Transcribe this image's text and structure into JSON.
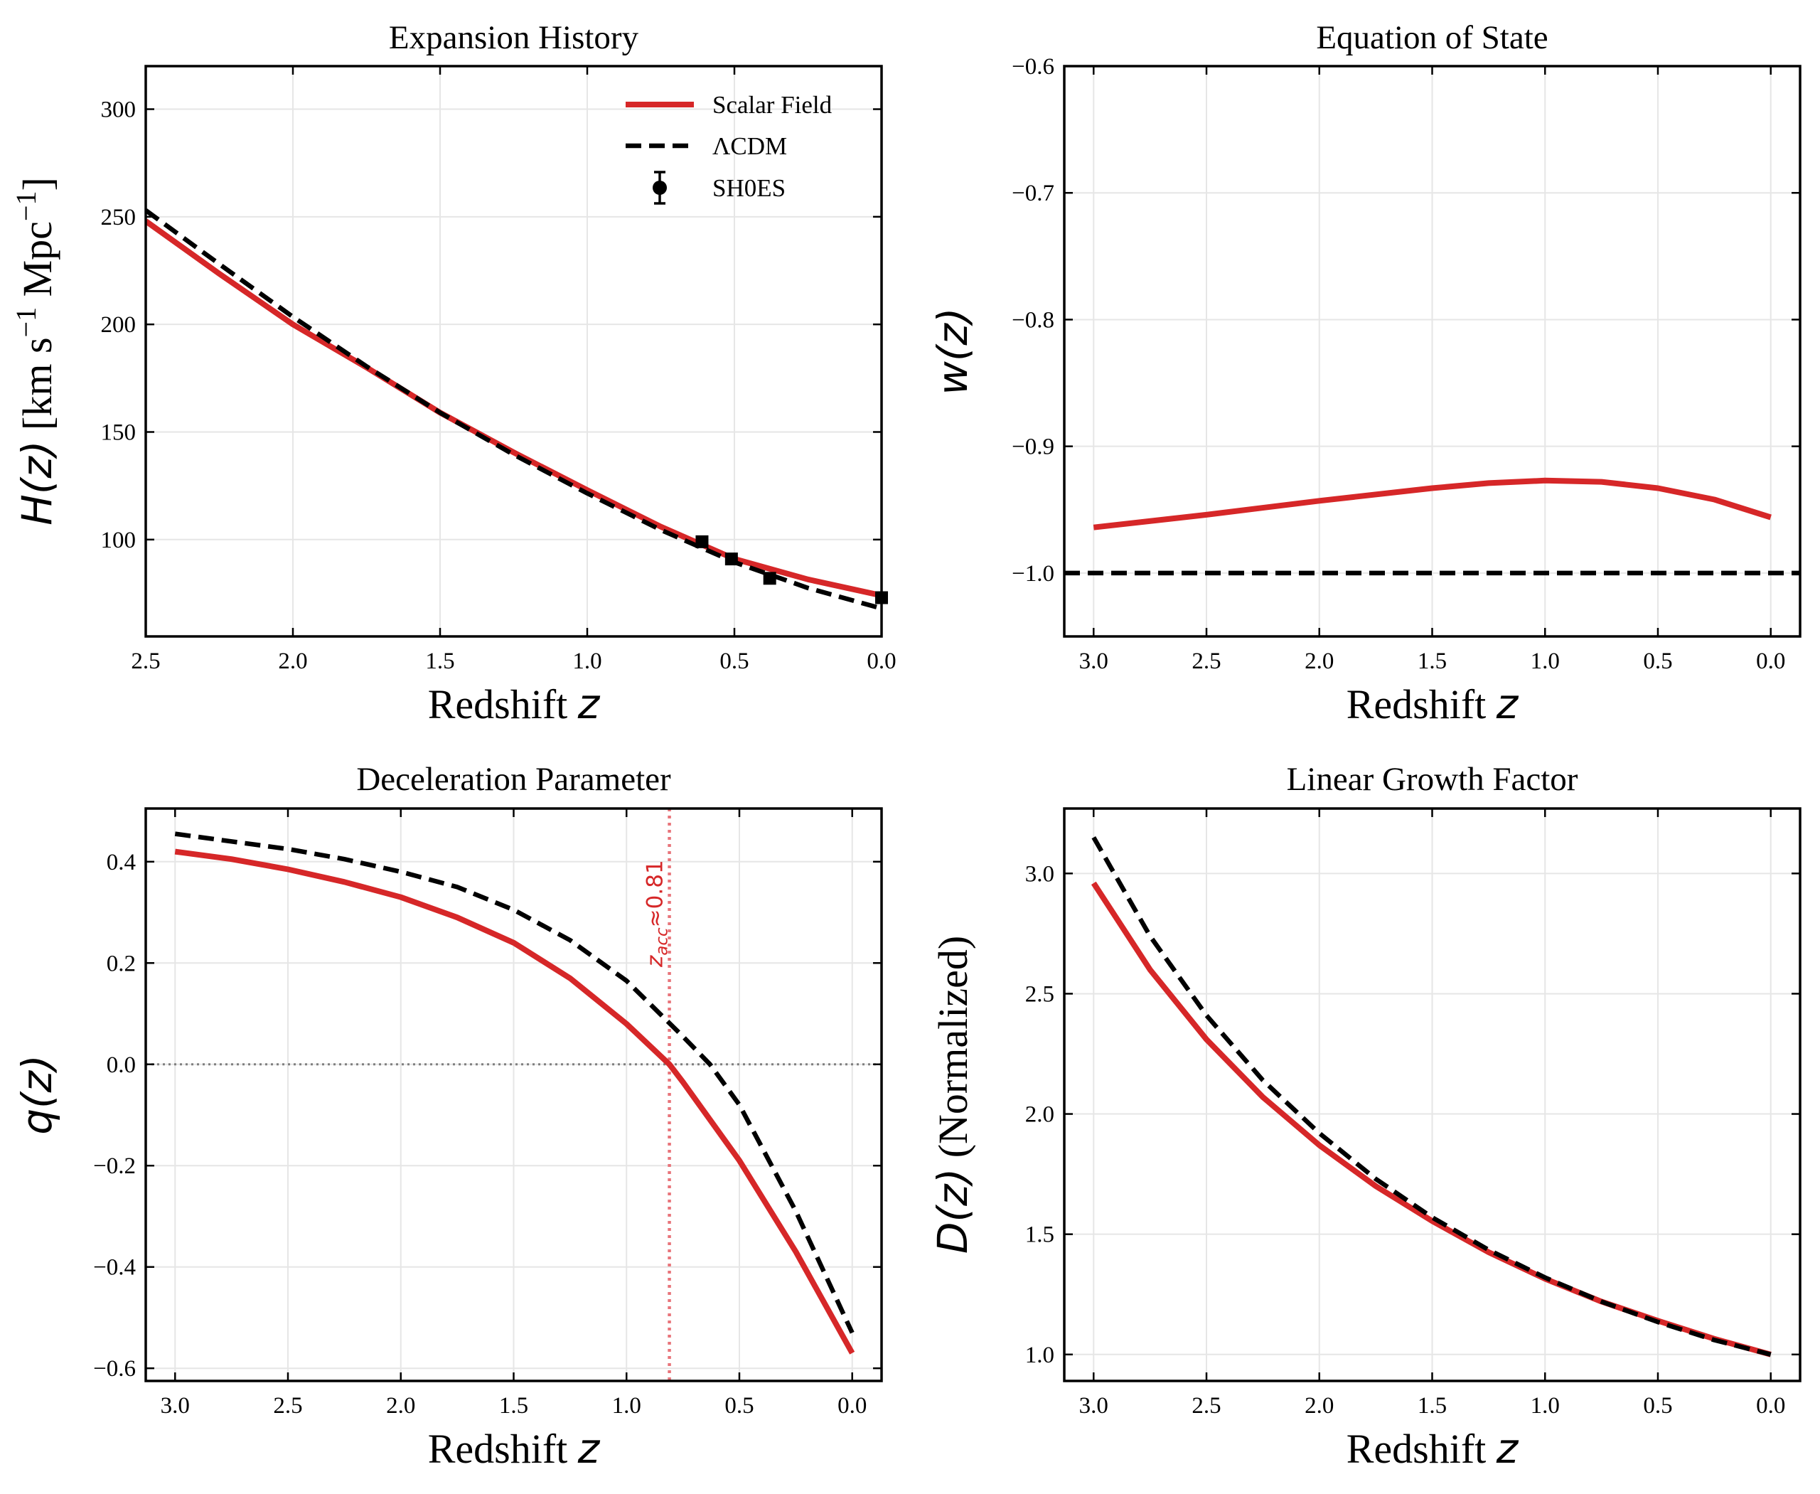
{
  "colors": {
    "scalar": "#d62728",
    "lcdm": "#000000",
    "grid": "#e6e6e6",
    "zero_line": "#7f7f7f",
    "annotation": "#e8747a"
  },
  "chart_data": [
    {
      "id": "expansion",
      "type": "line",
      "title": "Expansion History",
      "xlabel": "Redshift",
      "xlabel_math": "z",
      "ylabel_math": "H(z)",
      "ylabel_rest": "[km s",
      "ylabel_unit_mid": " Mpc",
      "ylabel_exp": "−1",
      "ylabel_close": "]",
      "xlim": [
        2.5,
        0.0
      ],
      "ylim": [
        55,
        320
      ],
      "xticks": [
        "2.5",
        "2.0",
        "1.5",
        "1.0",
        "0.5",
        "0.0"
      ],
      "xtick_values": [
        2.5,
        2.0,
        1.5,
        1.0,
        0.5,
        0.0
      ],
      "yticks": [
        "100",
        "150",
        "200",
        "250",
        "300"
      ],
      "ytick_values": [
        100,
        150,
        200,
        250,
        300
      ],
      "series": [
        {
          "name": "Scalar Field",
          "style": "solid",
          "x": [
            2.5,
            2.25,
            2.0,
            1.75,
            1.5,
            1.25,
            1.0,
            0.75,
            0.5,
            0.25,
            0.0
          ],
          "values": [
            248,
            223.5,
            200,
            180,
            159,
            140.5,
            123,
            106,
            91,
            81.5,
            74
          ]
        },
        {
          "name": "ΛCDM",
          "style": "dashed",
          "x": [
            2.5,
            2.25,
            2.0,
            1.75,
            1.5,
            1.25,
            1.0,
            0.75,
            0.5,
            0.25,
            0.0
          ],
          "values": [
            253,
            228,
            203.5,
            180.5,
            159,
            139.5,
            121.5,
            104.5,
            89.5,
            77.5,
            68
          ]
        }
      ],
      "points": {
        "name": "SH0ES",
        "x": [
          0.61,
          0.51,
          0.38,
          0.0
        ],
        "values": [
          99,
          91,
          82,
          73
        ]
      },
      "legend": {
        "placement": "upper-right",
        "entries": [
          "Scalar Field",
          "ΛCDM",
          "SH0ES"
        ]
      }
    },
    {
      "id": "eos",
      "type": "line",
      "title": "Equation of State",
      "xlabel": "Redshift",
      "xlabel_math": "z",
      "ylabel_math": "w(z)",
      "xlim": [
        3.13,
        -0.13
      ],
      "ylim": [
        -1.05,
        -0.6
      ],
      "xticks": [
        "3.0",
        "2.5",
        "2.0",
        "1.5",
        "1.0",
        "0.5",
        "0.0"
      ],
      "xtick_values": [
        3.0,
        2.5,
        2.0,
        1.5,
        1.0,
        0.5,
        0.0
      ],
      "yticks": [
        "−1.0",
        "−0.9",
        "−0.8",
        "−0.7",
        "−0.6"
      ],
      "ytick_values": [
        -1.0,
        -0.9,
        -0.8,
        -0.7,
        -0.6
      ],
      "series": [
        {
          "name": "Scalar Field",
          "style": "solid",
          "x": [
            3.0,
            2.5,
            2.0,
            1.5,
            1.25,
            1.0,
            0.75,
            0.5,
            0.25,
            0.0
          ],
          "values": [
            -0.964,
            -0.954,
            -0.943,
            -0.933,
            -0.929,
            -0.927,
            -0.928,
            -0.933,
            -0.942,
            -0.956
          ]
        },
        {
          "name": "ΛCDM",
          "style": "dashed",
          "x": [
            3.13,
            -0.13
          ],
          "values": [
            -1.0,
            -1.0
          ]
        }
      ]
    },
    {
      "id": "decel",
      "type": "line",
      "title": "Deceleration Parameter",
      "xlabel": "Redshift",
      "xlabel_math": "z",
      "ylabel_math": "q(z)",
      "xlim": [
        3.13,
        -0.13
      ],
      "ylim": [
        -0.625,
        0.505
      ],
      "xticks": [
        "3.0",
        "2.5",
        "2.0",
        "1.5",
        "1.0",
        "0.5",
        "0.0"
      ],
      "xtick_values": [
        3.0,
        2.5,
        2.0,
        1.5,
        1.0,
        0.5,
        0.0
      ],
      "yticks": [
        "−0.6",
        "−0.4",
        "−0.2",
        "0.0",
        "0.2",
        "0.4"
      ],
      "ytick_values": [
        -0.6,
        -0.4,
        -0.2,
        0.0,
        0.2,
        0.4
      ],
      "series": [
        {
          "name": "Scalar Field",
          "style": "solid",
          "x": [
            3.0,
            2.75,
            2.5,
            2.25,
            2.0,
            1.75,
            1.5,
            1.25,
            1.0,
            0.81,
            0.75,
            0.5,
            0.25,
            0.0
          ],
          "values": [
            0.42,
            0.405,
            0.385,
            0.36,
            0.33,
            0.29,
            0.24,
            0.17,
            0.08,
            0.0,
            -0.035,
            -0.19,
            -0.37,
            -0.57
          ]
        },
        {
          "name": "ΛCDM",
          "style": "dashed",
          "x": [
            3.0,
            2.75,
            2.5,
            2.25,
            2.0,
            1.75,
            1.5,
            1.25,
            1.0,
            0.75,
            0.63,
            0.5,
            0.25,
            0.0
          ],
          "values": [
            0.455,
            0.44,
            0.425,
            0.405,
            0.38,
            0.35,
            0.305,
            0.245,
            0.165,
            0.055,
            0.0,
            -0.08,
            -0.29,
            -0.53
          ]
        }
      ],
      "vline": {
        "x": 0.81
      },
      "zero_line": 0.0,
      "annotation": {
        "text": "z",
        "sub": "acc",
        "rest": "≈0.81"
      }
    },
    {
      "id": "growth",
      "type": "line",
      "title": "Linear Growth Factor",
      "xlabel": "Redshift",
      "xlabel_math": "z",
      "ylabel_math": "D(z)",
      "ylabel_rest": " (Normalized)",
      "xlim": [
        3.13,
        -0.13
      ],
      "ylim": [
        0.89,
        3.27
      ],
      "xticks": [
        "3.0",
        "2.5",
        "2.0",
        "1.5",
        "1.0",
        "0.5",
        "0.0"
      ],
      "xtick_values": [
        3.0,
        2.5,
        2.0,
        1.5,
        1.0,
        0.5,
        0.0
      ],
      "yticks": [
        "1.0",
        "1.5",
        "2.0",
        "2.5",
        "3.0"
      ],
      "ytick_values": [
        1.0,
        1.5,
        2.0,
        2.5,
        3.0
      ],
      "series": [
        {
          "name": "Scalar Field",
          "style": "solid",
          "x": [
            3.0,
            2.75,
            2.5,
            2.25,
            2.0,
            1.75,
            1.5,
            1.25,
            1.0,
            0.75,
            0.5,
            0.25,
            0.0
          ],
          "values": [
            2.96,
            2.6,
            2.31,
            2.07,
            1.87,
            1.7,
            1.555,
            1.425,
            1.315,
            1.22,
            1.14,
            1.065,
            1.0
          ]
        },
        {
          "name": "ΛCDM",
          "style": "dashed",
          "x": [
            3.0,
            2.75,
            2.5,
            2.25,
            2.0,
            1.75,
            1.5,
            1.25,
            1.0,
            0.75,
            0.5,
            0.25,
            0.0
          ],
          "values": [
            3.15,
            2.74,
            2.41,
            2.14,
            1.92,
            1.73,
            1.57,
            1.435,
            1.32,
            1.22,
            1.135,
            1.06,
            1.0
          ]
        }
      ]
    }
  ]
}
